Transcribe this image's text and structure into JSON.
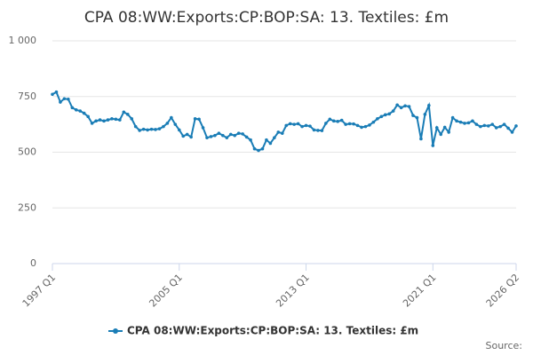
{
  "chart_data": {
    "type": "line",
    "title": "CPA 08:WW:Exports:CP:BOP:SA: 13. Textiles: £m",
    "source": "Source:",
    "categories": [
      "1997 Q1",
      null,
      null,
      null,
      null,
      null,
      null,
      null,
      null,
      null,
      null,
      null,
      null,
      null,
      null,
      null,
      null,
      null,
      null,
      null,
      null,
      null,
      null,
      null,
      null,
      null,
      null,
      null,
      null,
      null,
      null,
      null,
      "2005 Q1",
      null,
      null,
      null,
      null,
      null,
      null,
      null,
      null,
      null,
      null,
      null,
      null,
      null,
      null,
      null,
      null,
      null,
      null,
      null,
      null,
      null,
      null,
      null,
      null,
      null,
      null,
      null,
      null,
      null,
      null,
      null,
      "2013 Q1",
      null,
      null,
      null,
      null,
      null,
      null,
      null,
      null,
      null,
      null,
      null,
      null,
      null,
      null,
      null,
      null,
      null,
      null,
      null,
      null,
      null,
      null,
      null,
      null,
      null,
      null,
      null,
      null,
      null,
      null,
      null,
      "2021 Q1",
      null,
      null,
      null,
      null,
      null,
      null,
      null,
      null,
      null,
      null,
      null,
      null,
      null,
      null,
      null,
      null,
      null,
      null,
      null,
      null,
      "2026 Q2"
    ],
    "series": [
      {
        "name": "CPA 08:WW:Exports:CP:BOP:SA: 13. Textiles: £m",
        "color": "#1a7db6",
        "values": [
          760,
          770,
          725,
          740,
          738,
          700,
          690,
          685,
          675,
          660,
          630,
          640,
          645,
          640,
          645,
          650,
          648,
          645,
          680,
          670,
          650,
          615,
          598,
          603,
          600,
          603,
          602,
          605,
          615,
          630,
          655,
          625,
          600,
          572,
          580,
          568,
          650,
          648,
          610,
          565,
          570,
          575,
          585,
          575,
          565,
          580,
          575,
          585,
          582,
          568,
          555,
          515,
          508,
          515,
          555,
          540,
          565,
          590,
          585,
          620,
          628,
          625,
          628,
          615,
          620,
          617,
          600,
          598,
          597,
          630,
          648,
          640,
          638,
          643,
          625,
          628,
          627,
          620,
          612,
          615,
          622,
          635,
          650,
          660,
          668,
          672,
          685,
          712,
          700,
          708,
          705,
          665,
          655,
          560,
          670,
          710,
          530,
          610,
          580,
          612,
          590,
          655,
          640,
          635,
          630,
          632,
          640,
          625,
          615,
          620,
          618,
          625,
          610,
          615,
          625,
          608,
          590,
          618
        ]
      }
    ],
    "ylim": [
      0,
      1000
    ],
    "yticks": [
      0,
      250,
      500,
      750,
      {
        "value": 1000,
        "label": "1 000"
      }
    ],
    "grid": true
  }
}
